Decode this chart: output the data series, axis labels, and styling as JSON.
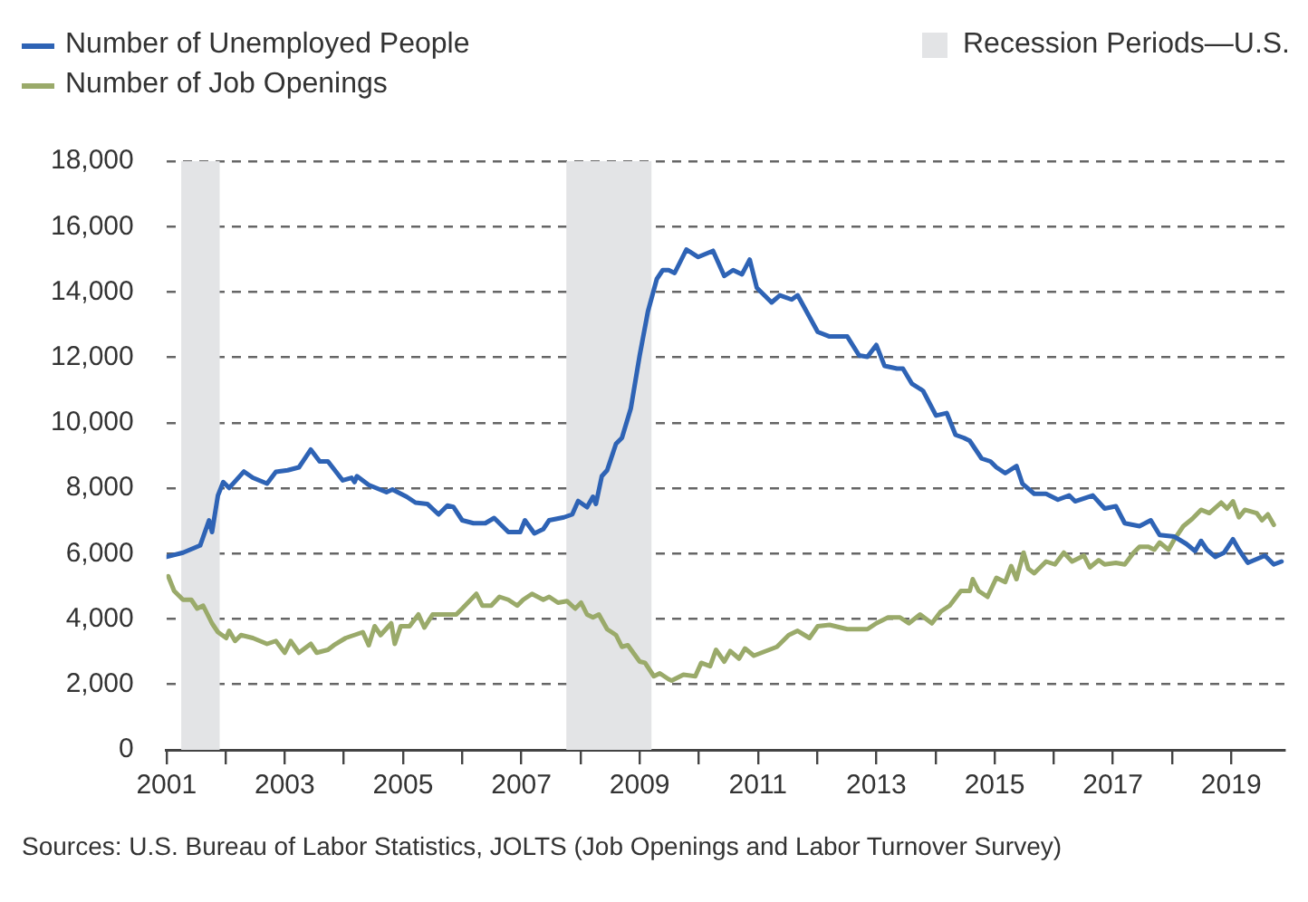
{
  "chart_data": {
    "type": "line",
    "legend": "top",
    "grid": "y",
    "marker": "none",
    "line_style": "solid",
    "xlim": [
      2001,
      2019.9
    ],
    "xticks": [
      2001,
      {
        "value": 2002,
        "label": null
      },
      2003,
      {
        "value": 2004,
        "label": null
      },
      2005,
      {
        "value": 2006,
        "label": null
      },
      2007,
      {
        "value": 2008,
        "label": null
      },
      2009,
      {
        "value": 2010,
        "label": null
      },
      2011,
      {
        "value": 2012,
        "label": null
      },
      2013,
      {
        "value": 2014,
        "label": null
      },
      2015,
      {
        "value": 2016,
        "label": null
      },
      2017,
      {
        "value": 2018,
        "label": null
      },
      2019
    ],
    "ylim": [
      0,
      18000
    ],
    "yticks": [
      {
        "value": 0,
        "label": "0"
      },
      {
        "value": 2000,
        "label": "2,000"
      },
      {
        "value": 4000,
        "label": "4,000"
      },
      {
        "value": 6000,
        "label": "6,000"
      },
      {
        "value": 8000,
        "label": "8,000"
      },
      {
        "value": 10000,
        "label": "10,000"
      },
      {
        "value": 12000,
        "label": "12,000"
      },
      {
        "value": 14000,
        "label": "14,000"
      },
      {
        "value": 16000,
        "label": "16,000"
      },
      {
        "value": 18000,
        "label": "18,000"
      }
    ],
    "bands": [
      {
        "axis": "x",
        "from": 2001.25,
        "to": 2001.9,
        "label": "Recession Periods—U.S.",
        "color": "#e3e4e6"
      },
      {
        "axis": "x",
        "from": 2007.76,
        "to": 2009.2,
        "color": "#e3e4e6"
      }
    ],
    "series": [
      {
        "name": "Number of Unemployed People",
        "color": "#2e63b5",
        "x": [
          2001.0,
          2001.28,
          2001.57,
          2001.72,
          2001.77,
          2001.87,
          2001.96,
          2002.06,
          2002.31,
          2002.46,
          2002.7,
          2002.85,
          2003.05,
          2003.24,
          2003.44,
          2003.59,
          2003.73,
          2003.98,
          2004.13,
          2004.18,
          2004.22,
          2004.42,
          2004.72,
          2004.82,
          2005.06,
          2005.21,
          2005.41,
          2005.6,
          2005.75,
          2005.85,
          2006.0,
          2006.19,
          2006.39,
          2006.54,
          2006.78,
          2006.98,
          2007.06,
          2007.22,
          2007.37,
          2007.47,
          2007.72,
          2007.86,
          2007.96,
          2008.11,
          2008.21,
          2008.26,
          2008.36,
          2008.45,
          2008.6,
          2008.7,
          2008.85,
          2009.0,
          2009.14,
          2009.29,
          2009.39,
          2009.49,
          2009.59,
          2009.79,
          2009.99,
          2010.24,
          2010.43,
          2010.58,
          2010.73,
          2010.86,
          2010.98,
          2011.23,
          2011.37,
          2011.57,
          2011.67,
          2012.01,
          2012.21,
          2012.51,
          2012.71,
          2012.85,
          2013.0,
          2013.14,
          2013.35,
          2013.45,
          2013.6,
          2013.79,
          2014.01,
          2014.19,
          2014.34,
          2014.48,
          2014.58,
          2014.78,
          2014.93,
          2015.03,
          2015.18,
          2015.37,
          2015.47,
          2015.67,
          2015.87,
          2016.07,
          2016.26,
          2016.36,
          2016.66,
          2016.86,
          2017.05,
          2017.2,
          2017.45,
          2017.64,
          2017.79,
          2018.04,
          2018.24,
          2018.39,
          2018.49,
          2018.59,
          2018.73,
          2018.88,
          2019.03,
          2019.13,
          2019.28,
          2019.57,
          2019.72,
          2019.85
        ],
        "values": [
          5900,
          6030,
          6250,
          7020,
          6660,
          7780,
          8190,
          8010,
          8510,
          8320,
          8140,
          8500,
          8550,
          8640,
          9180,
          8820,
          8820,
          8240,
          8320,
          8190,
          8370,
          8100,
          7880,
          7960,
          7740,
          7560,
          7520,
          7200,
          7470,
          7430,
          7020,
          6930,
          6930,
          7090,
          6660,
          6660,
          7020,
          6620,
          6750,
          7020,
          7110,
          7200,
          7610,
          7420,
          7740,
          7520,
          8370,
          8550,
          9360,
          9540,
          10440,
          12060,
          13410,
          14400,
          14670,
          14670,
          14580,
          15300,
          15070,
          15260,
          14490,
          14670,
          14540,
          14990,
          14130,
          13680,
          13900,
          13770,
          13900,
          12780,
          12640,
          12640,
          12060,
          12020,
          12380,
          11740,
          11660,
          11660,
          11200,
          10980,
          10220,
          10300,
          9630,
          9540,
          9450,
          8910,
          8820,
          8640,
          8460,
          8680,
          8140,
          7830,
          7830,
          7650,
          7780,
          7600,
          7780,
          7380,
          7450,
          6930,
          6840,
          7020,
          6570,
          6520,
          6300,
          6080,
          6390,
          6120,
          5900,
          6030,
          6440,
          6120,
          5720,
          5940,
          5670,
          5760
        ]
      },
      {
        "name": "Number of Job Openings",
        "color": "#9aaa6a",
        "x": [
          2001.03,
          2001.13,
          2001.28,
          2001.42,
          2001.52,
          2001.62,
          2001.77,
          2001.87,
          2002.01,
          2002.06,
          2002.16,
          2002.26,
          2002.46,
          2002.7,
          2002.85,
          2003.0,
          2003.1,
          2003.24,
          2003.44,
          2003.54,
          2003.73,
          2003.83,
          2004.03,
          2004.32,
          2004.42,
          2004.52,
          2004.62,
          2004.8,
          2004.86,
          2004.96,
          2005.11,
          2005.26,
          2005.36,
          2005.5,
          2005.7,
          2005.9,
          2006.0,
          2006.24,
          2006.34,
          2006.49,
          2006.63,
          2006.78,
          2006.93,
          2007.03,
          2007.18,
          2007.37,
          2007.47,
          2007.62,
          2007.77,
          2007.91,
          2008.01,
          2008.11,
          2008.21,
          2008.31,
          2008.45,
          2008.6,
          2008.7,
          2008.8,
          2009.0,
          2009.09,
          2009.24,
          2009.34,
          2009.49,
          2009.54,
          2009.74,
          2009.94,
          2010.04,
          2010.19,
          2010.29,
          2010.43,
          2010.53,
          2010.68,
          2010.78,
          2010.93,
          2011.32,
          2011.52,
          2011.67,
          2011.87,
          2012.01,
          2012.21,
          2012.51,
          2012.85,
          2013.0,
          2013.2,
          2013.4,
          2013.55,
          2013.74,
          2013.94,
          2014.09,
          2014.24,
          2014.43,
          2014.58,
          2014.63,
          2014.73,
          2014.88,
          2015.03,
          2015.18,
          2015.28,
          2015.37,
          2015.49,
          2015.57,
          2015.67,
          2015.87,
          2016.02,
          2016.17,
          2016.31,
          2016.51,
          2016.61,
          2016.76,
          2016.86,
          2017.05,
          2017.2,
          2017.35,
          2017.45,
          2017.6,
          2017.7,
          2017.79,
          2017.94,
          2018.04,
          2018.19,
          2018.34,
          2018.49,
          2018.63,
          2018.83,
          2018.93,
          2019.03,
          2019.13,
          2019.23,
          2019.43,
          2019.52,
          2019.62,
          2019.72
        ],
        "values": [
          5310,
          4860,
          4590,
          4590,
          4320,
          4410,
          3870,
          3600,
          3420,
          3640,
          3330,
          3510,
          3420,
          3240,
          3330,
          2970,
          3330,
          2970,
          3240,
          2970,
          3060,
          3200,
          3420,
          3600,
          3200,
          3780,
          3510,
          3870,
          3240,
          3780,
          3780,
          4140,
          3740,
          4140,
          4140,
          4140,
          4320,
          4770,
          4410,
          4410,
          4680,
          4590,
          4410,
          4590,
          4770,
          4590,
          4680,
          4500,
          4550,
          4320,
          4500,
          4140,
          4050,
          4140,
          3690,
          3510,
          3150,
          3200,
          2700,
          2660,
          2250,
          2340,
          2160,
          2120,
          2300,
          2250,
          2660,
          2560,
          3060,
          2700,
          3020,
          2790,
          3100,
          2880,
          3150,
          3510,
          3640,
          3420,
          3780,
          3820,
          3690,
          3690,
          3870,
          4050,
          4050,
          3870,
          4140,
          3870,
          4230,
          4410,
          4860,
          4860,
          5220,
          4860,
          4680,
          5260,
          5130,
          5620,
          5220,
          6030,
          5540,
          5400,
          5760,
          5670,
          6030,
          5760,
          5940,
          5580,
          5800,
          5670,
          5720,
          5670,
          6030,
          6210,
          6210,
          6120,
          6340,
          6120,
          6440,
          6840,
          7060,
          7340,
          7240,
          7560,
          7380,
          7600,
          7110,
          7340,
          7240,
          7020,
          7200,
          6880
        ]
      }
    ],
    "annotations": [
      "Sources: U.S. Bureau of Labor Statistics, JOLTS (Job Openings and Labor Turnover Survey)"
    ]
  }
}
